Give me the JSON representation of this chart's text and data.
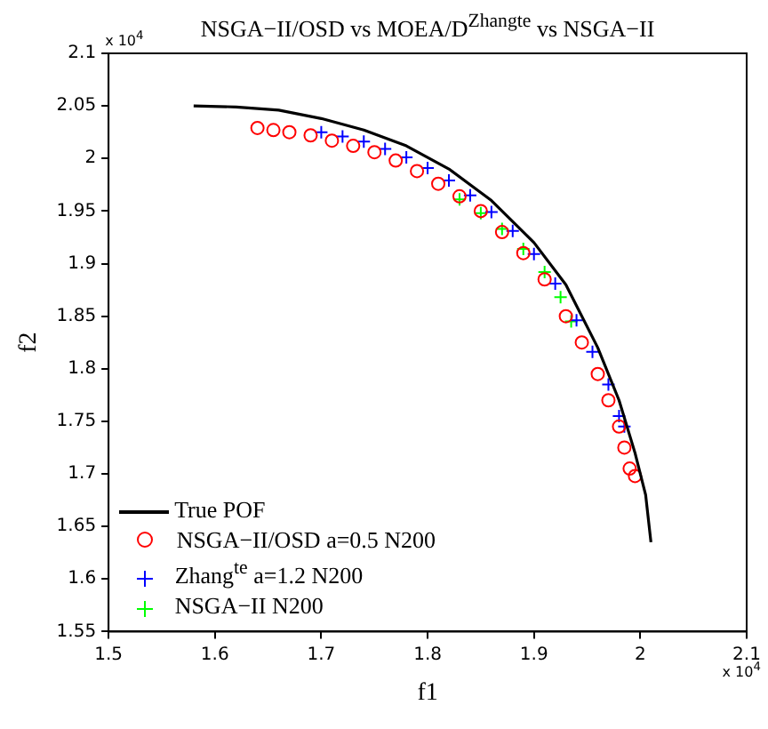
{
  "chart_data": {
    "type": "scatter",
    "title": "NSGA−II/OSD vs MOEA/D$^{Zhang}$$^{te}$ vs NSGA−II",
    "xlabel": "f1",
    "ylabel": "f2",
    "annotations": [
      "x 10$^{4}$",
      "x 10$^{4}$"
    ],
    "xlim": [
      1.5,
      2.1
    ],
    "xticks": [
      1.5,
      1.6,
      1.7,
      1.8,
      1.9,
      2,
      2.1
    ],
    "ylim": [
      1.55,
      2.1
    ],
    "yticks": [
      1.55,
      1.6,
      1.65,
      1.7,
      1.75,
      1.8,
      1.85,
      1.9,
      1.95,
      2,
      2.05,
      2.1
    ],
    "grid": false,
    "legend": "bottom left",
    "series": [
      {
        "name": "True POF",
        "type": "line",
        "marker": "none",
        "line_style": "solid",
        "color": "#000000",
        "x": [
          1.58,
          1.62,
          1.66,
          1.7,
          1.74,
          1.78,
          1.82,
          1.86,
          1.9,
          1.93,
          1.96,
          1.98,
          1.995,
          2.005,
          2.01
        ],
        "values": [
          2.05,
          2.049,
          2.046,
          2.038,
          2.027,
          2.012,
          1.99,
          1.96,
          1.92,
          1.88,
          1.82,
          1.77,
          1.72,
          1.68,
          1.635
        ]
      },
      {
        "name": "NSGA−II/OSD a=0.5 N200",
        "type": "scatter",
        "marker": "circle",
        "color": "#ff0000",
        "x": [
          1.64,
          1.655,
          1.67,
          1.69,
          1.71,
          1.73,
          1.75,
          1.77,
          1.79,
          1.81,
          1.83,
          1.85,
          1.87,
          1.89,
          1.91,
          1.93,
          1.945,
          1.96,
          1.97,
          1.98,
          1.985,
          1.99,
          1.995
        ],
        "values": [
          2.029,
          2.027,
          2.025,
          2.022,
          2.017,
          2.012,
          2.006,
          1.998,
          1.988,
          1.976,
          1.964,
          1.95,
          1.93,
          1.91,
          1.885,
          1.85,
          1.825,
          1.795,
          1.77,
          1.745,
          1.725,
          1.705,
          1.698
        ]
      },
      {
        "name": "Zhang$^{te}$ a=1.2 N200",
        "type": "scatter",
        "marker": "cross",
        "color": "#0000ff",
        "x": [
          1.7,
          1.72,
          1.74,
          1.76,
          1.78,
          1.8,
          1.82,
          1.84,
          1.86,
          1.88,
          1.9,
          1.92,
          1.94,
          1.955,
          1.97,
          1.98,
          1.985
        ],
        "values": [
          2.025,
          2.021,
          2.016,
          2.009,
          2.001,
          1.991,
          1.979,
          1.965,
          1.949,
          1.931,
          1.909,
          1.881,
          1.846,
          1.816,
          1.785,
          1.755,
          1.745
        ]
      },
      {
        "name": "NSGA−II N200",
        "type": "scatter",
        "marker": "cross",
        "color": "#00ff00",
        "x": [
          1.83,
          1.85,
          1.87,
          1.89,
          1.91,
          1.925,
          1.935
        ],
        "values": [
          1.961,
          1.948,
          1.933,
          1.914,
          1.892,
          1.868,
          1.845
        ]
      }
    ]
  }
}
